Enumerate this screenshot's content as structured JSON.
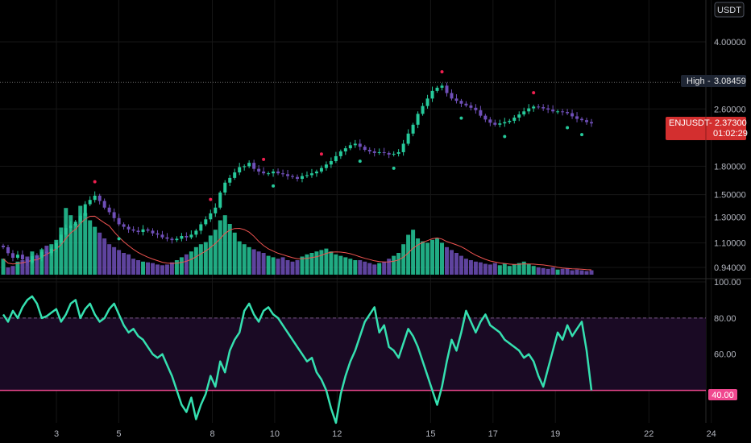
{
  "currency_badge": "USDT",
  "high_marker": {
    "label": "High",
    "value": "3.08459"
  },
  "last_price": {
    "symbol": "ENJUSDT",
    "value": "2.37300",
    "countdown": "01:02:29"
  },
  "colors": {
    "background": "#000000",
    "up": "#26c99a",
    "down": "#6f4fb8",
    "volume_ma": "#ef5350",
    "rsi_line": "#35e0b0",
    "rsi_band": "#1a0a24",
    "rsi_40": "#f0488f",
    "high_label": "#1e2533",
    "last_label": "#d32f2f",
    "high_marker_dot": "#ef1f4f"
  },
  "chart_data": [
    {
      "type": "candlestick",
      "title": "",
      "y_scale": "log",
      "y_tick_labels": [
        "4.00000",
        "3.08459",
        "2.60000",
        "1.80000",
        "1.50000",
        "1.30000",
        "1.10000",
        "0.94000"
      ],
      "x_tick_labels": [
        "3",
        "5",
        "8",
        "10",
        "12",
        "15",
        "17",
        "19",
        "22",
        "24"
      ],
      "high": 3.08459,
      "last": 2.373,
      "close_series": [
        1.07,
        1.03,
        1.0,
        1.02,
        0.99,
        0.97,
        1.01,
        1.0,
        1.04,
        1.03,
        1.06,
        1.1,
        1.16,
        1.21,
        1.23,
        1.26,
        1.31,
        1.41,
        1.45,
        1.49,
        1.44,
        1.38,
        1.34,
        1.29,
        1.24,
        1.22,
        1.2,
        1.19,
        1.18,
        1.2,
        1.19,
        1.17,
        1.16,
        1.14,
        1.13,
        1.12,
        1.13,
        1.15,
        1.14,
        1.16,
        1.19,
        1.24,
        1.28,
        1.33,
        1.38,
        1.52,
        1.62,
        1.67,
        1.73,
        1.79,
        1.8,
        1.84,
        1.77,
        1.74,
        1.72,
        1.72,
        1.74,
        1.72,
        1.71,
        1.69,
        1.68,
        1.66,
        1.69,
        1.7,
        1.72,
        1.74,
        1.78,
        1.82,
        1.86,
        1.92,
        1.98,
        2.02,
        2.06,
        2.08,
        2.04,
        2.0,
        1.98,
        1.96,
        1.97,
        1.96,
        1.94,
        1.95,
        1.97,
        2.08,
        2.22,
        2.35,
        2.52,
        2.65,
        2.78,
        2.92,
        2.98,
        3.02,
        2.88,
        2.78,
        2.74,
        2.69,
        2.66,
        2.62,
        2.58,
        2.49,
        2.43,
        2.38,
        2.35,
        2.37,
        2.39,
        2.41,
        2.46,
        2.51,
        2.56,
        2.61,
        2.64,
        2.63,
        2.61,
        2.59,
        2.56,
        2.56,
        2.55,
        2.53,
        2.48,
        2.44,
        2.42,
        2.39,
        2.37
      ],
      "high_marker_days": [
        4.2,
        7.9,
        9.6,
        11.5,
        15.3,
        18.3
      ],
      "low_marker_days": [
        5.0,
        10.0,
        12.7,
        13.8,
        16.0,
        17.3,
        19.4,
        19.9
      ]
    },
    {
      "type": "bar",
      "title": "",
      "name": "Volume",
      "values": [
        0.22,
        0.1,
        0.12,
        0.18,
        0.2,
        0.25,
        0.32,
        0.27,
        0.35,
        0.4,
        0.42,
        0.48,
        0.65,
        0.92,
        0.82,
        0.7,
        0.95,
        0.85,
        0.75,
        0.66,
        0.58,
        0.5,
        0.42,
        0.38,
        0.34,
        0.3,
        0.28,
        0.22,
        0.2,
        0.18,
        0.17,
        0.16,
        0.14,
        0.13,
        0.14,
        0.17,
        0.2,
        0.24,
        0.28,
        0.32,
        0.38,
        0.42,
        0.45,
        0.54,
        0.62,
        0.75,
        0.82,
        0.7,
        0.58,
        0.46,
        0.42,
        0.38,
        0.35,
        0.32,
        0.3,
        0.26,
        0.24,
        0.22,
        0.24,
        0.2,
        0.18,
        0.2,
        0.25,
        0.28,
        0.3,
        0.32,
        0.34,
        0.36,
        0.32,
        0.28,
        0.26,
        0.24,
        0.22,
        0.2,
        0.2,
        0.18,
        0.16,
        0.14,
        0.16,
        0.18,
        0.22,
        0.26,
        0.3,
        0.42,
        0.55,
        0.62,
        0.5,
        0.46,
        0.44,
        0.48,
        0.5,
        0.44,
        0.38,
        0.34,
        0.3,
        0.26,
        0.22,
        0.2,
        0.18,
        0.17,
        0.15,
        0.14,
        0.16,
        0.13,
        0.15,
        0.12,
        0.14,
        0.16,
        0.18,
        0.15,
        0.12,
        0.1,
        0.09,
        0.08,
        0.1,
        0.07,
        0.08,
        0.09,
        0.06,
        0.07,
        0.06,
        0.05,
        0.06
      ]
    },
    {
      "type": "line",
      "title": "",
      "name": "RSI",
      "y_tick_labels": [
        "100.00",
        "80.00",
        "60.00",
        "40.00"
      ],
      "ylim": [
        22,
        100
      ],
      "reference_levels": [
        80,
        40
      ],
      "values": [
        82,
        78,
        84,
        80,
        86,
        90,
        92,
        88,
        80,
        81,
        83,
        85,
        78,
        82,
        88,
        90,
        80,
        85,
        88,
        82,
        78,
        80,
        85,
        88,
        82,
        76,
        72,
        74,
        70,
        68,
        64,
        60,
        58,
        60,
        54,
        48,
        40,
        32,
        28,
        36,
        24,
        32,
        38,
        48,
        42,
        56,
        50,
        62,
        68,
        72,
        84,
        88,
        82,
        78,
        84,
        86,
        82,
        80,
        76,
        72,
        68,
        64,
        60,
        56,
        58,
        50,
        46,
        40,
        30,
        22,
        38,
        48,
        56,
        62,
        70,
        78,
        82,
        86,
        72,
        76,
        64,
        62,
        58,
        66,
        74,
        70,
        64,
        56,
        48,
        40,
        32,
        42,
        56,
        68,
        62,
        72,
        84,
        78,
        72,
        78,
        82,
        76,
        74,
        72,
        68,
        66,
        64,
        62,
        58,
        60,
        56,
        48,
        42,
        52,
        62,
        72,
        68,
        76,
        70,
        74,
        78,
        62,
        40
      ]
    }
  ]
}
